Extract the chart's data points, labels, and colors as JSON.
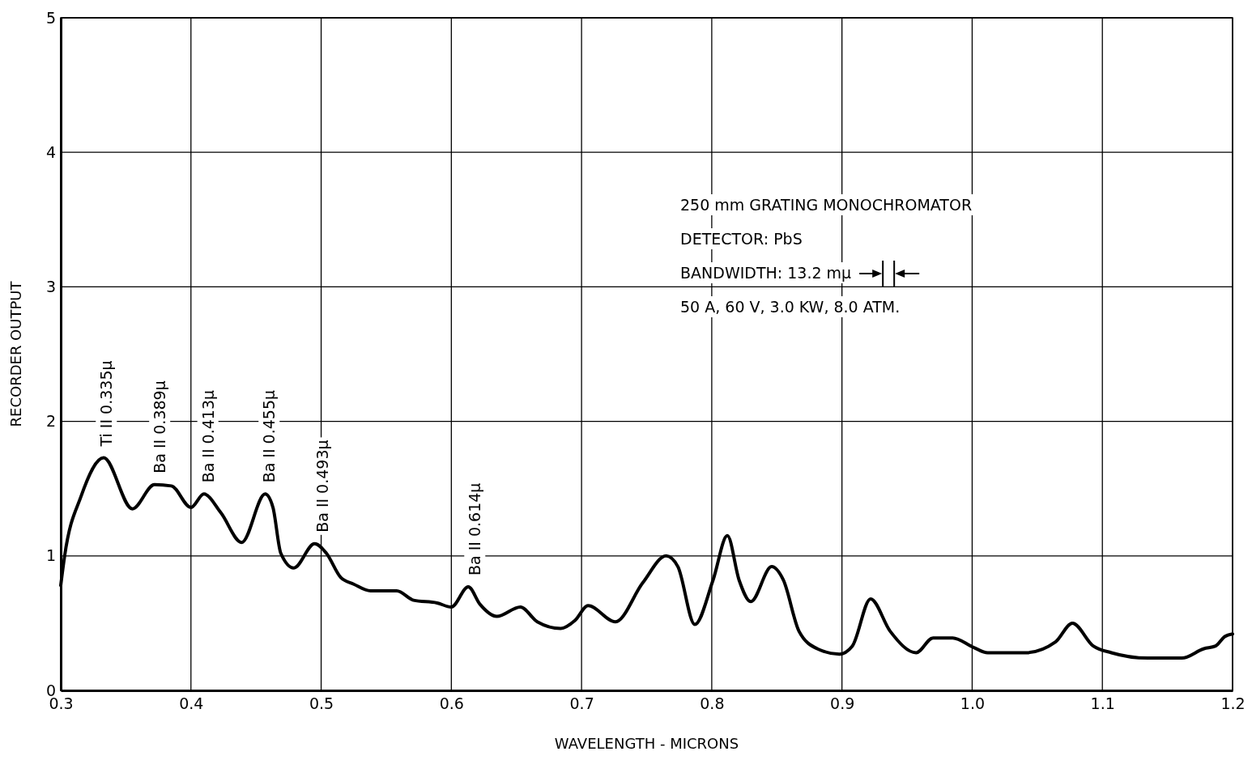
{
  "chart_data": {
    "type": "line",
    "xlabel": "WAVELENGTH - MICRONS",
    "ylabel": "RECORDER OUTPUT",
    "xlim": [
      0.3,
      1.2
    ],
    "xticks": [
      0.3,
      0.4,
      0.5,
      0.6,
      0.7,
      0.8,
      0.9,
      {
        "value": 1.0,
        "label": "1.0"
      },
      1.1,
      1.2
    ],
    "ylim": [
      0,
      5
    ],
    "yticks": [
      0,
      1,
      2,
      3,
      4,
      5
    ],
    "grid": true,
    "marker": "none",
    "line_style": "solid",
    "series": [
      {
        "color": "#000000",
        "x": [
          0.3,
          0.303,
          0.3155,
          0.333,
          0.355,
          0.372,
          0.385,
          0.4,
          0.41,
          0.423,
          0.439,
          0.457,
          0.463,
          0.469,
          0.479,
          0.495,
          0.504,
          0.515,
          0.525,
          0.538,
          0.558,
          0.571,
          0.589,
          0.6,
          0.613,
          0.622,
          0.635,
          0.653,
          0.666,
          0.684,
          0.695,
          0.705,
          0.726,
          0.747,
          0.765,
          0.774,
          0.787,
          0.801,
          0.812,
          0.821,
          0.83,
          0.846,
          0.855,
          0.867,
          0.881,
          0.898,
          0.908,
          0.922,
          0.937,
          0.957,
          0.97,
          0.985,
          1.001,
          1.012,
          1.041,
          1.064,
          1.077,
          1.093,
          1.107,
          1.135,
          1.161,
          1.178,
          1.187,
          1.194,
          1.2
        ],
        "values": [
          0.78,
          1.0,
          1.44,
          1.73,
          1.35,
          1.53,
          1.52,
          1.36,
          1.46,
          1.32,
          1.1,
          1.46,
          1.36,
          1.02,
          0.91,
          1.09,
          1.02,
          0.84,
          0.79,
          0.74,
          0.74,
          0.67,
          0.65,
          0.62,
          0.77,
          0.64,
          0.55,
          0.62,
          0.51,
          0.46,
          0.52,
          0.63,
          0.51,
          0.8,
          1.0,
          0.92,
          0.49,
          0.82,
          1.15,
          0.82,
          0.66,
          0.92,
          0.82,
          0.44,
          0.31,
          0.27,
          0.33,
          0.68,
          0.44,
          0.28,
          0.39,
          0.39,
          0.32,
          0.28,
          0.28,
          0.36,
          0.5,
          0.33,
          0.28,
          0.24,
          0.24,
          0.31,
          0.33,
          0.4,
          0.42
        ]
      }
    ],
    "annotations": [
      {
        "text": "Ti II 0.335μ",
        "x": 0.335,
        "y": 1.73
      },
      {
        "text": "Ba II 0.389μ",
        "x": 0.376,
        "y": 1.53
      },
      {
        "text": "Ba II 0.413μ",
        "x": 0.413,
        "y": 1.46
      },
      {
        "text": "Ba II 0.455μ",
        "x": 0.46,
        "y": 1.46
      },
      {
        "text": "Ba II 0.493μ",
        "x": 0.501,
        "y": 1.09
      },
      {
        "text": "Ba II 0.614μ",
        "x": 0.618,
        "y": 0.77
      },
      "250 mm GRATING MONOCHROMATOR",
      "DETECTOR:  PbS",
      "BANDWIDTH:  13.2 mμ",
      "50 A, 60 V, 3.0 KW, 8.0 ATM."
    ]
  }
}
